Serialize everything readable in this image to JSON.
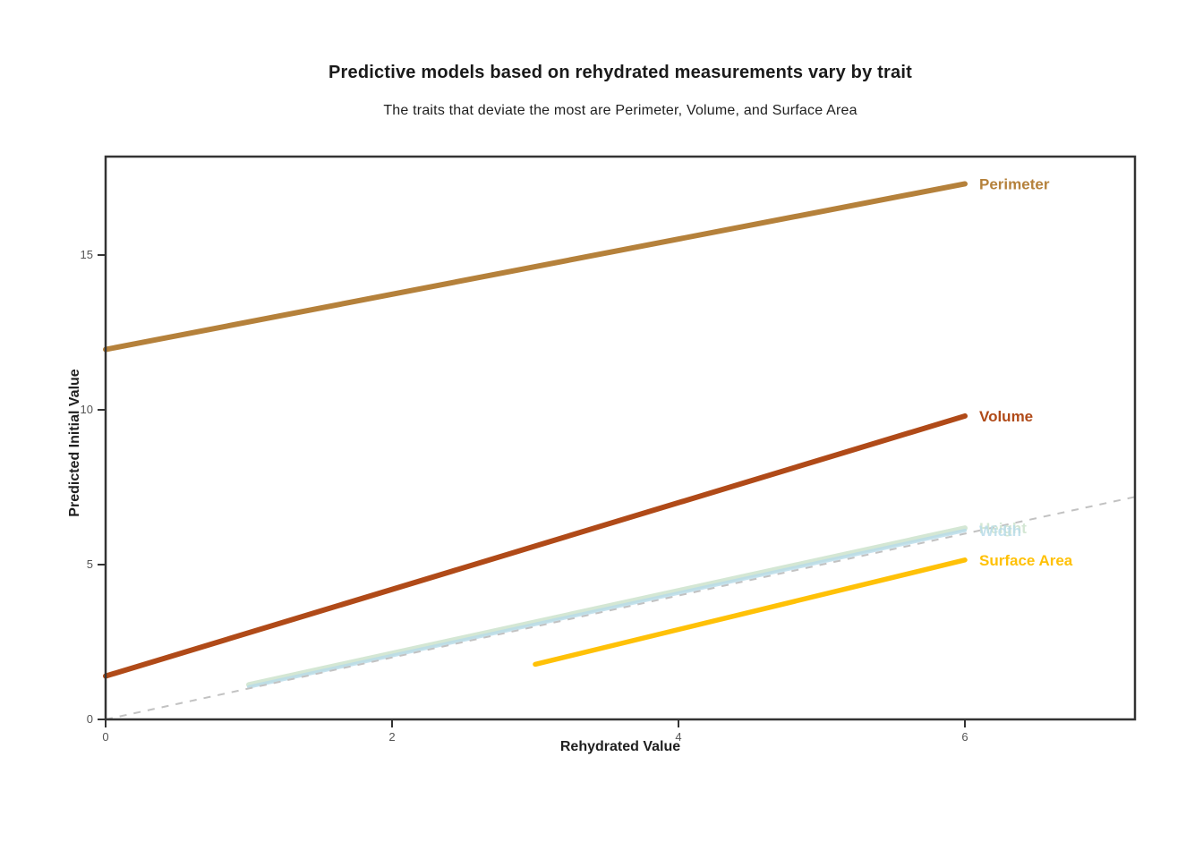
{
  "page": {
    "background": "#ffffff",
    "text_color": "#1f1f1f",
    "axis_color": "#333333",
    "tick_label_color": "#555555"
  },
  "chart_data": {
    "type": "line",
    "title": "Predictive models based on rehydrated measurements vary by trait",
    "subtitle": "The traits that deviate the most are Perimeter, Volume, and Surface Area",
    "xlabel": "Rehydrated Value",
    "ylabel": "Predicted Initial Value",
    "xlim": [
      0,
      7.1875
    ],
    "ylim": [
      0,
      18.18
    ],
    "x_ticks": [
      0,
      2,
      4,
      6
    ],
    "y_ticks": [
      0,
      5,
      10,
      15
    ],
    "grid": false,
    "legend": "direct labels at right end of each line",
    "series": [
      {
        "name": "Perimeter",
        "x": [
          0,
          6
        ],
        "y": [
          11.95,
          17.3
        ],
        "color": "#b5813b",
        "stroke_width": 6,
        "opacity": 1
      },
      {
        "name": "Volume",
        "x": [
          0,
          6
        ],
        "y": [
          1.4,
          9.8
        ],
        "color": "#b04a18",
        "stroke_width": 6,
        "opacity": 1
      },
      {
        "name": "Height",
        "x": [
          1,
          6
        ],
        "y": [
          1.12,
          6.18
        ],
        "color": "#d4e7d4",
        "stroke_width": 6,
        "opacity": 1
      },
      {
        "name": "Width",
        "x": [
          1,
          6
        ],
        "y": [
          1.05,
          6.1
        ],
        "color": "#b7dbe8",
        "stroke_width": 4,
        "opacity": 0.8
      },
      {
        "name": "Surface Area",
        "x": [
          3,
          6
        ],
        "y": [
          1.78,
          5.15
        ],
        "color": "#ffc107",
        "stroke_width": 5.5,
        "opacity": 1
      }
    ],
    "reference_line": {
      "name": "identity (y = x)",
      "x": [
        0,
        7.1875
      ],
      "y": [
        0,
        7.1875
      ],
      "color": "#c2c2c2",
      "style": "dashed",
      "stroke_width": 2
    }
  }
}
